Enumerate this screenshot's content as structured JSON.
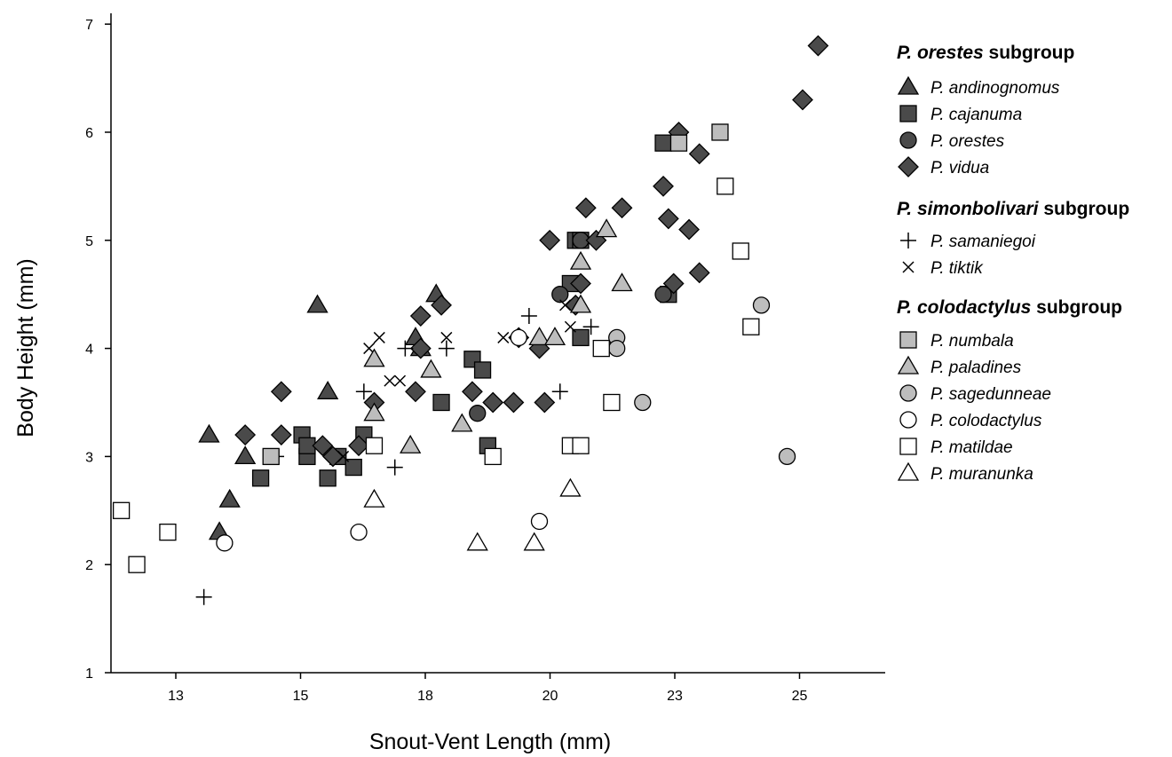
{
  "colors": {
    "dark": "#4a4a4a",
    "light": "#bdbdbd",
    "open": "#ffffff",
    "stroke": "#000000"
  },
  "chart_data": {
    "type": "scatter",
    "xlabel": "Snout-Vent Length (mm)",
    "ylabel": "Body Height (mm)",
    "xlim": [
      11.5,
      26.5
    ],
    "ylim": [
      1,
      7.1
    ],
    "xticks": [
      "13",
      "15",
      "18",
      "20",
      "23",
      "25"
    ],
    "yticks": [
      "1",
      "2",
      "3",
      "4",
      "5",
      "6",
      "7"
    ],
    "legend_position": "right",
    "legend": [
      {
        "heading_italic": "P. orestes",
        "heading_rest": " subgroup",
        "items": [
          {
            "label": "P. andinognomus",
            "marker": "triangle",
            "fill": "dark"
          },
          {
            "label": "P. cajanuma",
            "marker": "square",
            "fill": "dark"
          },
          {
            "label": "P. orestes",
            "marker": "circle",
            "fill": "dark"
          },
          {
            "label": "P. vidua",
            "marker": "diamond",
            "fill": "dark"
          }
        ]
      },
      {
        "heading_italic": "P. simonbolivari",
        "heading_rest": " subgroup",
        "items": [
          {
            "label": "P. samaniegoi",
            "marker": "plus",
            "fill": "open"
          },
          {
            "label": "P. tiktik",
            "marker": "x",
            "fill": "open"
          }
        ]
      },
      {
        "heading_italic": "P. colodactylus",
        "heading_rest": " subgroup",
        "items": [
          {
            "label": "P. numbala",
            "marker": "square",
            "fill": "light"
          },
          {
            "label": "P. paladines",
            "marker": "triangle",
            "fill": "light"
          },
          {
            "label": "P. sagedunneae",
            "marker": "circle",
            "fill": "light"
          },
          {
            "label": "P. colodactylus",
            "marker": "circle",
            "fill": "open"
          },
          {
            "label": "P. matildae",
            "marker": "square",
            "fill": "open"
          },
          {
            "label": "P. muranunka",
            "marker": "triangle",
            "fill": "open"
          }
        ]
      }
    ],
    "series": [
      {
        "name": "P. andinognomus",
        "marker": "triangle",
        "fill": "dark",
        "points": [
          [
            13.4,
            3.2
          ],
          [
            13.8,
            2.6
          ],
          [
            13.6,
            2.3
          ],
          [
            14.1,
            3.0
          ],
          [
            15.5,
            4.4
          ],
          [
            15.7,
            3.6
          ],
          [
            17.4,
            4.1
          ],
          [
            17.5,
            4.0
          ],
          [
            17.8,
            4.5
          ]
        ]
      },
      {
        "name": "P. cajanuma",
        "marker": "square",
        "fill": "dark",
        "points": [
          [
            14.4,
            2.8
          ],
          [
            15.2,
            3.2
          ],
          [
            15.3,
            3.0
          ],
          [
            15.3,
            3.1
          ],
          [
            15.7,
            2.8
          ],
          [
            15.9,
            3.0
          ],
          [
            16.2,
            2.9
          ],
          [
            16.4,
            3.2
          ],
          [
            17.9,
            3.5
          ],
          [
            18.5,
            3.9
          ],
          [
            18.7,
            3.8
          ],
          [
            18.8,
            3.1
          ],
          [
            20.4,
            4.6
          ],
          [
            20.5,
            5.0
          ],
          [
            20.6,
            5.0
          ],
          [
            20.6,
            4.1
          ],
          [
            22.2,
            5.9
          ],
          [
            22.3,
            4.5
          ]
        ]
      },
      {
        "name": "P. orestes",
        "marker": "circle",
        "fill": "dark",
        "points": [
          [
            18.6,
            3.4
          ],
          [
            20.2,
            4.5
          ],
          [
            20.6,
            5.0
          ],
          [
            22.2,
            4.5
          ]
        ]
      },
      {
        "name": "P. vidua",
        "marker": "diamond",
        "fill": "dark",
        "points": [
          [
            14.1,
            3.2
          ],
          [
            14.8,
            3.6
          ],
          [
            14.8,
            3.2
          ],
          [
            15.6,
            3.1
          ],
          [
            15.8,
            3.0
          ],
          [
            16.3,
            3.1
          ],
          [
            16.6,
            3.5
          ],
          [
            17.4,
            3.6
          ],
          [
            17.5,
            4.0
          ],
          [
            17.5,
            4.3
          ],
          [
            17.9,
            4.4
          ],
          [
            18.5,
            3.6
          ],
          [
            18.9,
            3.5
          ],
          [
            19.3,
            3.5
          ],
          [
            19.4,
            4.1
          ],
          [
            19.8,
            4.0
          ],
          [
            19.9,
            3.5
          ],
          [
            20.0,
            5.0
          ],
          [
            20.5,
            4.4
          ],
          [
            20.6,
            4.6
          ],
          [
            20.7,
            5.3
          ],
          [
            20.9,
            5.0
          ],
          [
            21.4,
            5.3
          ],
          [
            22.2,
            5.5
          ],
          [
            22.3,
            5.2
          ],
          [
            22.4,
            4.6
          ],
          [
            22.5,
            6.0
          ],
          [
            22.7,
            5.1
          ],
          [
            22.9,
            5.8
          ],
          [
            22.9,
            4.7
          ],
          [
            24.9,
            6.3
          ],
          [
            25.2,
            6.8
          ]
        ]
      },
      {
        "name": "P. samaniegoi",
        "marker": "plus",
        "fill": "open",
        "points": [
          [
            13.3,
            1.7
          ],
          [
            14.7,
            3.0
          ],
          [
            16.4,
            3.6
          ],
          [
            17.0,
            2.9
          ],
          [
            17.2,
            4.0
          ],
          [
            18.0,
            4.0
          ],
          [
            19.6,
            4.3
          ],
          [
            20.2,
            3.6
          ],
          [
            20.8,
            4.2
          ],
          [
            22.5,
            5.9
          ]
        ]
      },
      {
        "name": "P. tiktik",
        "marker": "x",
        "fill": "open",
        "points": [
          [
            16.0,
            3.0
          ],
          [
            16.5,
            4.0
          ],
          [
            16.7,
            4.1
          ],
          [
            16.9,
            3.7
          ],
          [
            17.1,
            3.7
          ],
          [
            18.0,
            4.1
          ],
          [
            19.1,
            4.1
          ],
          [
            20.4,
            4.2
          ],
          [
            20.3,
            4.4
          ]
        ]
      },
      {
        "name": "P. numbala",
        "marker": "square",
        "fill": "light",
        "points": [
          [
            14.6,
            3.0
          ],
          [
            23.3,
            6.0
          ],
          [
            22.5,
            5.9
          ]
        ]
      },
      {
        "name": "P. paladines",
        "marker": "triangle",
        "fill": "light",
        "points": [
          [
            16.6,
            3.9
          ],
          [
            16.6,
            3.4
          ],
          [
            17.3,
            3.1
          ],
          [
            17.7,
            3.8
          ],
          [
            18.3,
            3.3
          ],
          [
            19.8,
            4.1
          ],
          [
            20.1,
            4.1
          ],
          [
            20.6,
            4.4
          ],
          [
            20.6,
            4.8
          ],
          [
            21.1,
            5.1
          ],
          [
            21.4,
            4.6
          ]
        ]
      },
      {
        "name": "P. sagedunneae",
        "marker": "circle",
        "fill": "light",
        "points": [
          [
            21.3,
            4.1
          ],
          [
            21.3,
            4.0
          ],
          [
            21.8,
            3.5
          ],
          [
            24.1,
            4.4
          ],
          [
            24.6,
            3.0
          ]
        ]
      },
      {
        "name": "P. colodactylus",
        "marker": "circle",
        "fill": "open",
        "points": [
          [
            13.7,
            2.2
          ],
          [
            16.3,
            2.3
          ],
          [
            19.4,
            4.1
          ],
          [
            19.8,
            2.4
          ]
        ]
      },
      {
        "name": "P. matildae",
        "marker": "square",
        "fill": "open",
        "points": [
          [
            11.7,
            2.5
          ],
          [
            12.0,
            2.0
          ],
          [
            12.6,
            2.3
          ],
          [
            18.9,
            3.0
          ],
          [
            20.4,
            3.1
          ],
          [
            20.6,
            3.1
          ],
          [
            21.0,
            4.0
          ],
          [
            21.2,
            3.5
          ],
          [
            23.4,
            5.5
          ],
          [
            23.7,
            4.9
          ],
          [
            23.9,
            4.2
          ],
          [
            16.6,
            3.1
          ]
        ]
      },
      {
        "name": "P. muranunka",
        "marker": "triangle",
        "fill": "open",
        "points": [
          [
            16.6,
            2.6
          ],
          [
            18.6,
            2.2
          ],
          [
            19.7,
            2.2
          ],
          [
            20.4,
            2.7
          ]
        ]
      }
    ]
  }
}
